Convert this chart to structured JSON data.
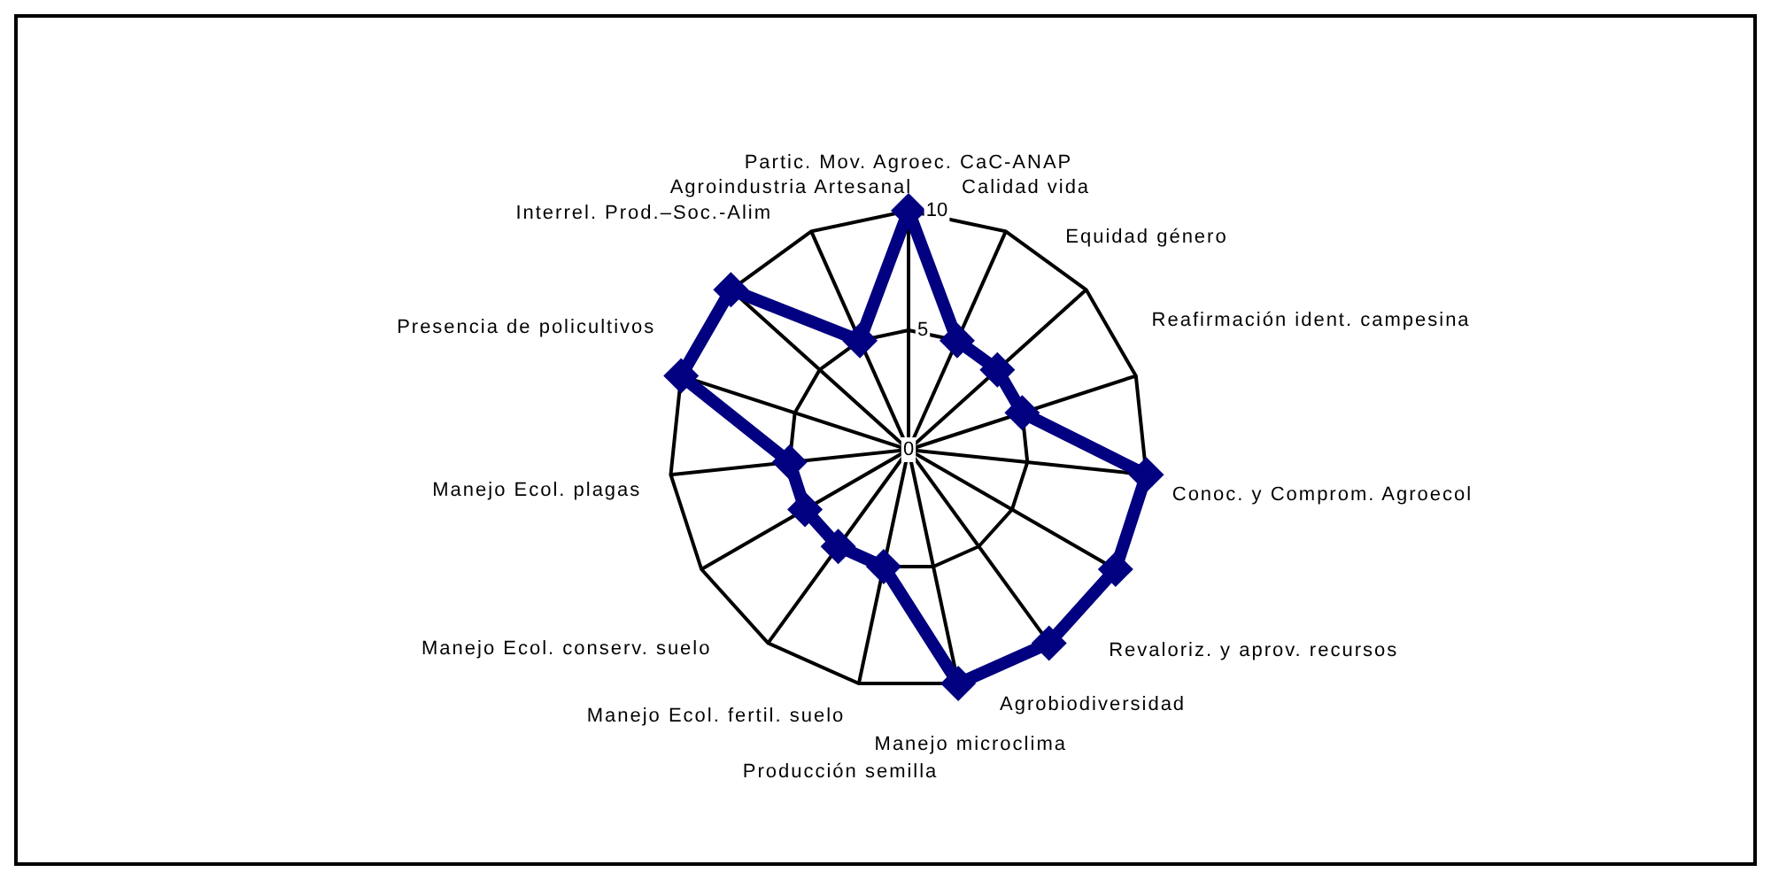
{
  "chart_data": {
    "type": "radar",
    "categories": [
      "Partic. Mov. Agroec. CaC-ANAP",
      "Calidad vida",
      "Equidad género",
      "Reafirmación ident. campesina",
      "Conoc. y Comprom. Agroecol",
      "Revaloriz. y aprov. recursos",
      "Agrobiodiversidad",
      "Manejo microclima",
      "Producción semilla",
      "Manejo Ecol. fertil. suelo",
      "Manejo Ecol. conserv. suelo",
      "Manejo Ecol. plagas",
      "Presencia de policultivos",
      "Interrel. Prod.–Soc.-Alim",
      "Agroindustria Artesanal"
    ],
    "series": [
      {
        "color": "#000080",
        "values": [
          10,
          5,
          5,
          5,
          10,
          10,
          10,
          10,
          5,
          5,
          5,
          5,
          10,
          10,
          5
        ]
      }
    ],
    "ylim": [
      0,
      10
    ],
    "yticks": [
      0,
      5,
      10
    ],
    "grid": true,
    "marker": "diamond",
    "legend": false
  }
}
